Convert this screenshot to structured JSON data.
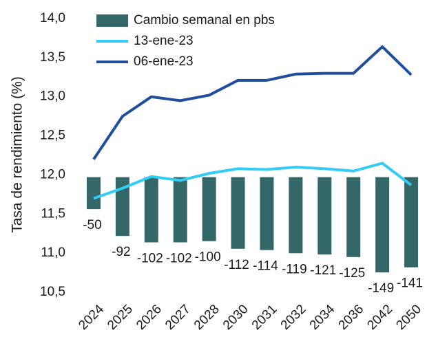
{
  "chart_data": {
    "type": "bar_line",
    "y_axis_label": "Tasa de rendimiento (%)",
    "categories": [
      "2024",
      "2025",
      "2026",
      "2027",
      "2028",
      "2030",
      "2031",
      "2032",
      "2034",
      "2036",
      "2042",
      "2050"
    ],
    "series": [
      {
        "name": "Cambio semanal en pbs",
        "type": "bar",
        "axis": "y2",
        "color": "#346868",
        "values": [
          -50,
          -92,
          -102,
          -102,
          -100,
          -112,
          -114,
          -119,
          -121,
          -125,
          -149,
          -141
        ]
      },
      {
        "name": "13-ene-23",
        "type": "line",
        "color": "#33ccf5",
        "values": [
          11.7,
          11.83,
          11.98,
          11.93,
          12.02,
          12.08,
          12.07,
          12.1,
          12.08,
          12.05,
          12.15,
          11.87
        ]
      },
      {
        "name": "06-ene-23",
        "type": "line",
        "color": "#1f4e9c",
        "values": [
          12.2,
          12.75,
          13.0,
          12.95,
          13.02,
          13.21,
          13.21,
          13.29,
          13.3,
          13.3,
          13.64,
          13.28
        ]
      }
    ],
    "ylim": [
      10.5,
      14.0
    ],
    "yticks": [
      {
        "value": 10.5,
        "label": "10,5"
      },
      {
        "value": 11.0,
        "label": "11,0"
      },
      {
        "value": 11.5,
        "label": "11,5"
      },
      {
        "value": 12.0,
        "label": "12,0"
      },
      {
        "value": 12.5,
        "label": "12,5"
      },
      {
        "value": 13.0,
        "label": "13,0"
      },
      {
        "value": 13.5,
        "label": "13,5"
      },
      {
        "value": 14.0,
        "label": "14,0"
      }
    ],
    "y2lim": [
      -180,
      248
    ],
    "grid": false,
    "legend": "top-left"
  }
}
